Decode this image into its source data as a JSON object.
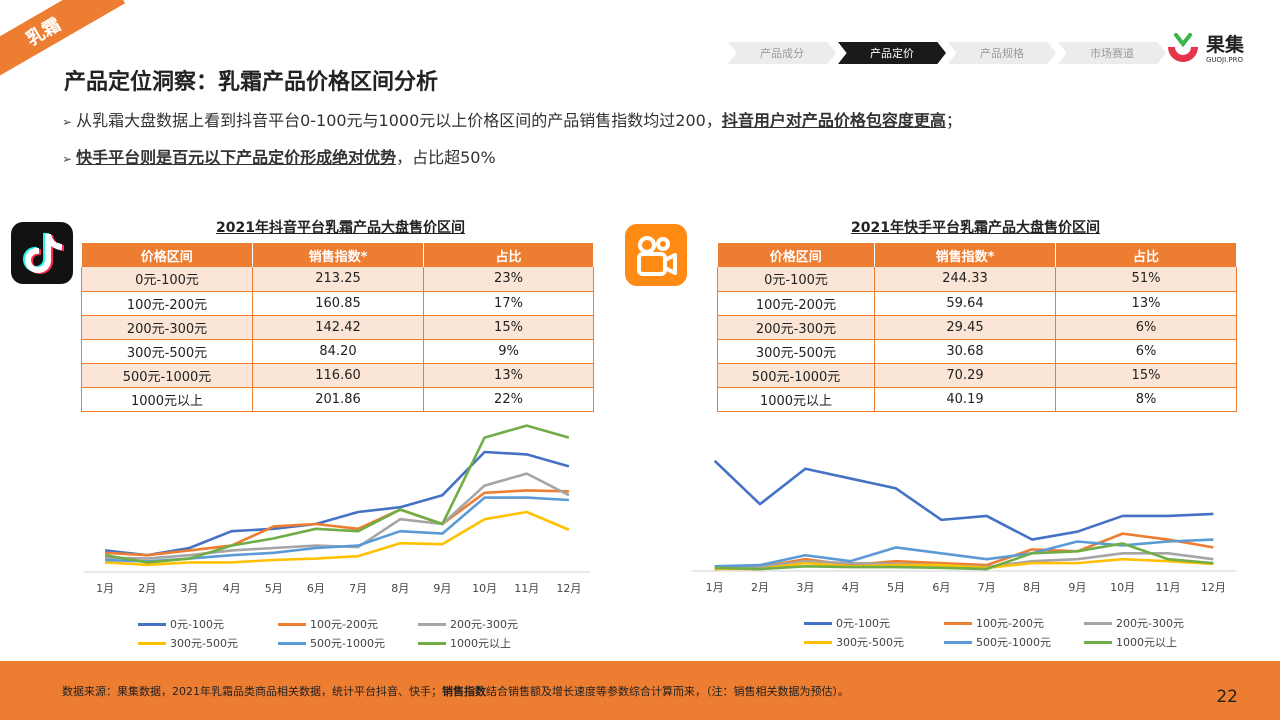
{
  "corner_tag": "乳霜",
  "breadcrumb": [
    "产品成分",
    "产品定价",
    "产品规格",
    "市场赛道"
  ],
  "logo": {
    "cn": "果集",
    "en": "GUOJI.PRO"
  },
  "page_title": "产品定位洞察：乳霜产品价格区间分析",
  "bullets": {
    "b1_text": "从乳霜大盘数据上看到抖音平台0-100元与1000元以上价格区间的产品销售指数均过200，",
    "b1_em": "抖音用户对产品价格包容度更高",
    "b1_end": "；",
    "b2_em": "快手平台则是百元以下产品定价形成绝对优势",
    "b2_text": "，占比超50%"
  },
  "icons": {
    "tiktok": "tiktok-logo-icon",
    "kuaishou": "kuaishou-logo-icon"
  },
  "colors": {
    "accent": "#ed7d31",
    "row_alt": "#fbe5d6"
  },
  "tables": {
    "douyin": {
      "title": "2021年抖音平台乳霜产品大盘售价区间",
      "headers": [
        "价格区间",
        "销售指数*",
        "占比"
      ],
      "rows": [
        [
          "0元-100元",
          "213.25",
          "23%"
        ],
        [
          "100元-200元",
          "160.85",
          "17%"
        ],
        [
          "200元-300元",
          "142.42",
          "15%"
        ],
        [
          "300元-500元",
          "84.20",
          "9%"
        ],
        [
          "500元-1000元",
          "116.60",
          "13%"
        ],
        [
          "1000元以上",
          "201.86",
          "22%"
        ]
      ]
    },
    "kuaishou": {
      "title": "2021年快手平台乳霜产品大盘售价区间",
      "headers": [
        "价格区间",
        "销售指数*",
        "占比"
      ],
      "rows": [
        [
          "0元-100元",
          "244.33",
          "51%"
        ],
        [
          "100元-200元",
          "59.64",
          "13%"
        ],
        [
          "200元-300元",
          "29.45",
          "6%"
        ],
        [
          "300元-500元",
          "30.68",
          "6%"
        ],
        [
          "500元-1000元",
          "70.29",
          "15%"
        ],
        [
          "1000元以上",
          "40.19",
          "8%"
        ]
      ]
    }
  },
  "chart_data": [
    {
      "type": "line",
      "categories": [
        "1月",
        "2月",
        "3月",
        "4月",
        "5月",
        "6月",
        "7月",
        "8月",
        "9月",
        "10月",
        "11月",
        "12月"
      ],
      "ylim": [
        0,
        300
      ],
      "grid": false,
      "legend": "bottom",
      "series": [
        {
          "name": "0元-100元",
          "color": "#4472c4",
          "values": [
            45,
            35,
            50,
            85,
            90,
            100,
            125,
            135,
            160,
            250,
            245,
            220
          ]
        },
        {
          "name": "100元-200元",
          "color": "#ed7d31",
          "values": [
            40,
            35,
            45,
            55,
            95,
            100,
            90,
            130,
            100,
            165,
            170,
            168
          ]
        },
        {
          "name": "200元-300元",
          "color": "#a5a5a5",
          "values": [
            30,
            28,
            35,
            45,
            50,
            55,
            52,
            110,
            100,
            180,
            205,
            160
          ]
        },
        {
          "name": "300元-500元",
          "color": "#ffc000",
          "values": [
            20,
            15,
            20,
            20,
            25,
            28,
            33,
            60,
            58,
            110,
            125,
            88
          ]
        },
        {
          "name": "500元-1000元",
          "color": "#5b9bd5",
          "values": [
            25,
            22,
            28,
            35,
            40,
            50,
            55,
            85,
            80,
            155,
            155,
            150
          ]
        },
        {
          "name": "1000元以上",
          "color": "#70ad47",
          "values": [
            35,
            20,
            28,
            55,
            70,
            90,
            85,
            130,
            100,
            280,
            305,
            280
          ]
        }
      ]
    },
    {
      "type": "line",
      "categories": [
        "1月",
        "2月",
        "3月",
        "4月",
        "5月",
        "6月",
        "7月",
        "8月",
        "9月",
        "10月",
        "11月",
        "12月"
      ],
      "ylim": [
        0,
        300
      ],
      "grid": false,
      "legend": "bottom",
      "series": [
        {
          "name": "0元-100元",
          "color": "#4472c4",
          "values": [
            280,
            170,
            260,
            235,
            210,
            130,
            140,
            80,
            100,
            140,
            140,
            145
          ]
        },
        {
          "name": "100元-200元",
          "color": "#ed7d31",
          "values": [
            5,
            10,
            30,
            15,
            25,
            20,
            15,
            55,
            50,
            95,
            80,
            60
          ]
        },
        {
          "name": "200元-300元",
          "color": "#a5a5a5",
          "values": [
            8,
            10,
            25,
            20,
            18,
            15,
            10,
            25,
            30,
            45,
            45,
            30
          ]
        },
        {
          "name": "300元-500元",
          "color": "#ffc000",
          "values": [
            6,
            5,
            20,
            12,
            15,
            15,
            8,
            20,
            20,
            30,
            25,
            18
          ]
        },
        {
          "name": "500元-1000元",
          "color": "#5b9bd5",
          "values": [
            12,
            15,
            40,
            25,
            60,
            45,
            30,
            45,
            75,
            65,
            75,
            80
          ]
        },
        {
          "name": "1000元以上",
          "color": "#70ad47",
          "values": [
            8,
            5,
            12,
            10,
            10,
            8,
            5,
            45,
            50,
            70,
            30,
            20
          ]
        }
      ]
    }
  ],
  "footer": {
    "source_a": "数据来源：果集数据，2021年乳霜品类商品相关数据，统计平台抖音、快手；",
    "source_b": "销售指数",
    "source_c": "结合销售额及增长速度等参数综合计算而来，（注：销售相关数据为预估）。",
    "page": "22"
  }
}
